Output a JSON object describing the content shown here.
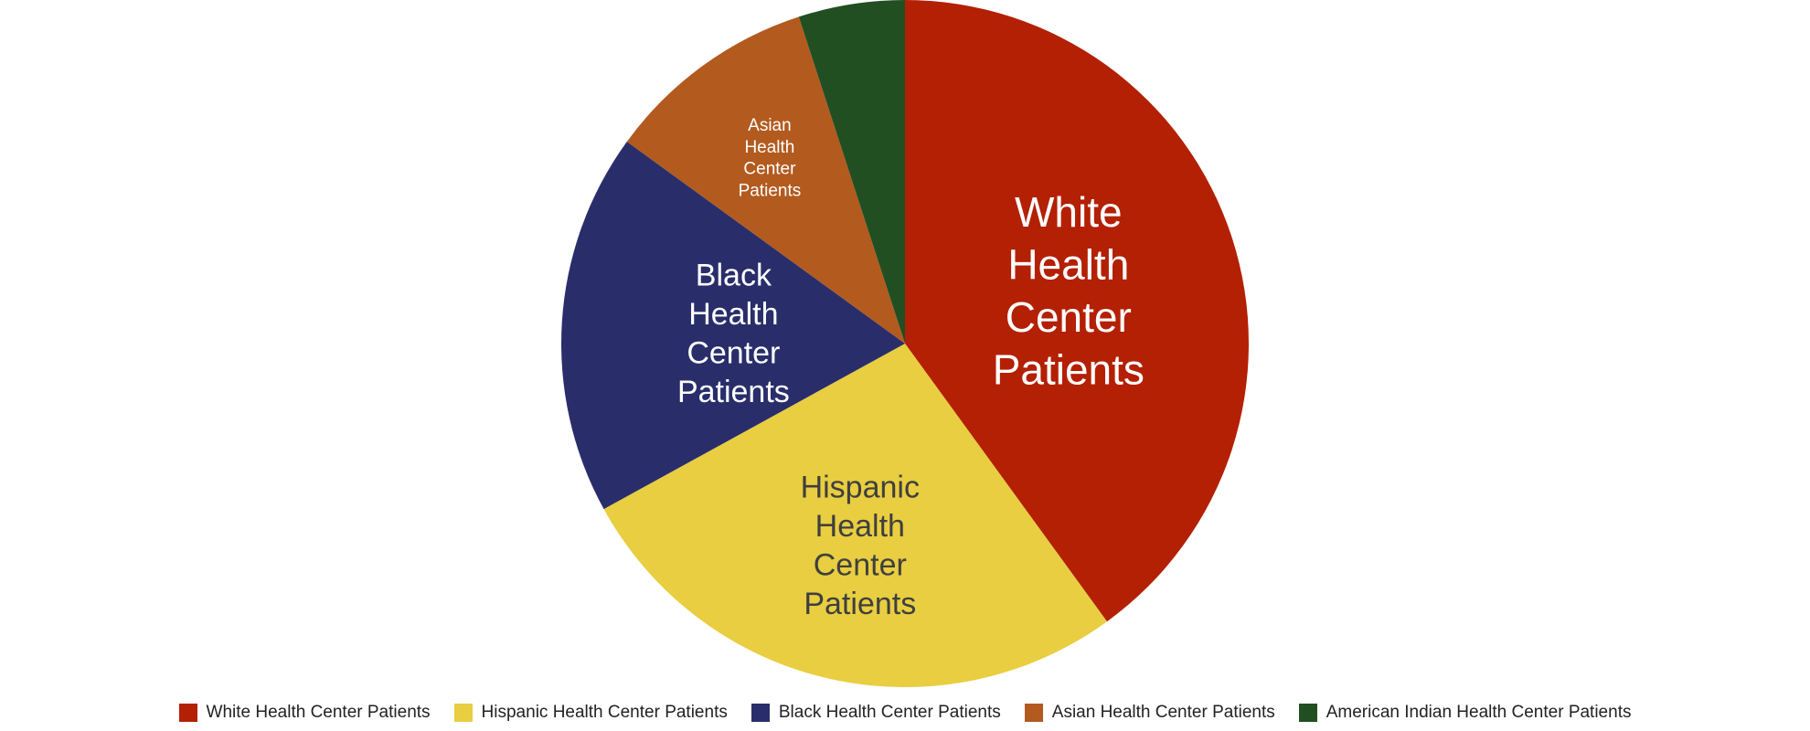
{
  "chart_data": {
    "type": "pie",
    "title": "",
    "slices": [
      {
        "label": "White Health Center Patients",
        "value": 40.0,
        "color": "#b32004",
        "label_color": "#ffffff",
        "label_lines": [
          "White",
          "Health",
          "Center",
          "Patients"
        ]
      },
      {
        "label": "Hispanic Health Center Patients",
        "value": 27.0,
        "color": "#e8ce40",
        "label_color": "#3f3f3f",
        "label_lines": [
          "Hispanic",
          "Health",
          "Center",
          "Patients"
        ]
      },
      {
        "label": "Black Health Center Patients",
        "value": 18.0,
        "color": "#292e6b",
        "label_color": "#ffffff",
        "label_lines": [
          "Black",
          "Health",
          "Center",
          "Patients"
        ]
      },
      {
        "label": "Asian Health Center Patients",
        "value": 10.0,
        "color": "#b35a1f",
        "label_color": "#ffffff",
        "label_lines": [
          "Asian",
          "Health",
          "Center",
          "Patients"
        ]
      },
      {
        "label": "American Indian Health Center Patients",
        "value": 5.0,
        "color": "#224f22",
        "label_color": "#ffffff",
        "label_lines": []
      }
    ],
    "legend_position": "bottom"
  }
}
